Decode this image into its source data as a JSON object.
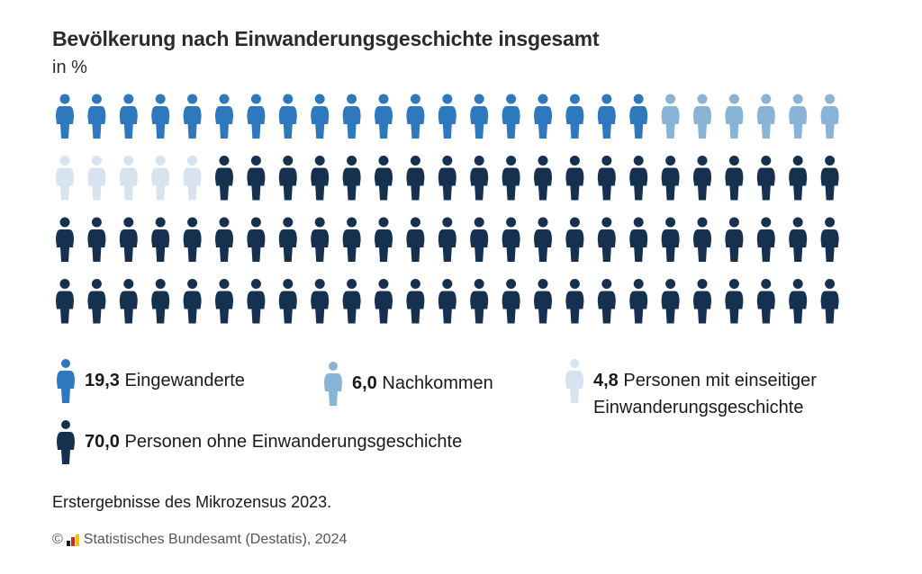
{
  "header": {
    "title": "Bevölkerung nach Einwanderungsgeschichte insgesamt",
    "subtitle": "in %"
  },
  "chart_data": {
    "type": "pictogram",
    "title": "Bevölkerung nach Einwanderungsgeschichte insgesamt",
    "unit": "in %",
    "icons_total": 100,
    "rows": 4,
    "per_row": 25,
    "series": [
      {
        "name": "Eingewanderte",
        "value": 19.3,
        "display_value": "19,3",
        "icons": 19,
        "color": "#2e78bd"
      },
      {
        "name": "Nachkommen",
        "value": 6.0,
        "display_value": "6,0",
        "icons": 6,
        "color": "#8ab4d6"
      },
      {
        "name": "Personen mit einseitiger Einwanderungsgeschichte",
        "name_line1": "Personen mit einseitiger",
        "name_line2": "Einwanderungsgeschichte",
        "value": 4.8,
        "display_value": "4,8",
        "icons": 5,
        "color": "#d7e3ef"
      },
      {
        "name": "Personen ohne Einwanderungsgeschichte",
        "value": 70.0,
        "display_value": "70,0",
        "icons": 70,
        "color": "#16304f"
      }
    ]
  },
  "footer": {
    "note": "Erstergebnisse des Mikrozensus 2023.",
    "copyright_symbol": "©",
    "source": "Statistisches Bundesamt (Destatis), 2024",
    "flag_colors": [
      "#1a1a1a",
      "#d2232a",
      "#f2c400"
    ]
  }
}
